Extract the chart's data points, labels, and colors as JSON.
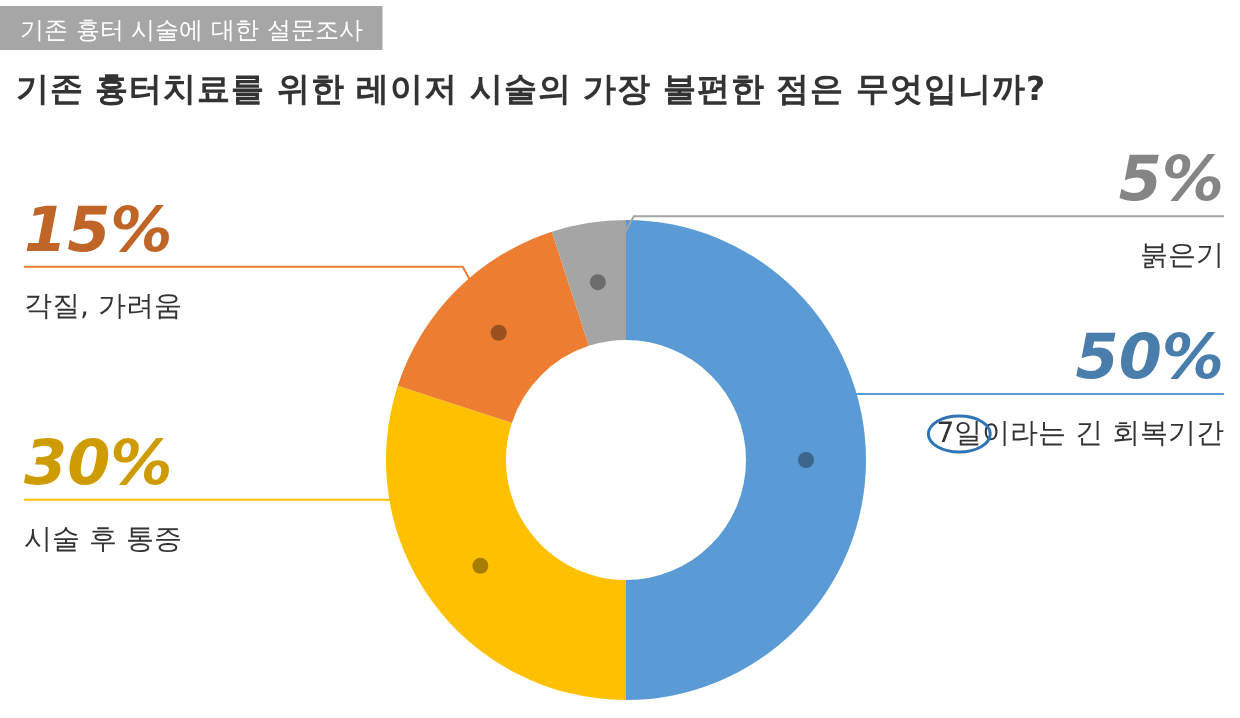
{
  "chart_data": {
    "type": "donut",
    "subtitle": "기존 흉터 시술에 대한  설문조사",
    "title": "기존 흉터치료를 위한 레이저 시술의 가장 불편한 점은 무엇입니까?",
    "categories": [
      "7일이라는 긴 회복기간",
      "시술 후  통증",
      "각질, 가려움",
      "붉은기"
    ],
    "values": [
      50,
      30,
      15,
      5
    ],
    "value_labels": [
      "50%",
      "30%",
      "15%",
      "5%"
    ],
    "colors": [
      "#5b9bd5",
      "#ffc000",
      "#ed7d31",
      "#a5a5a5"
    ]
  }
}
